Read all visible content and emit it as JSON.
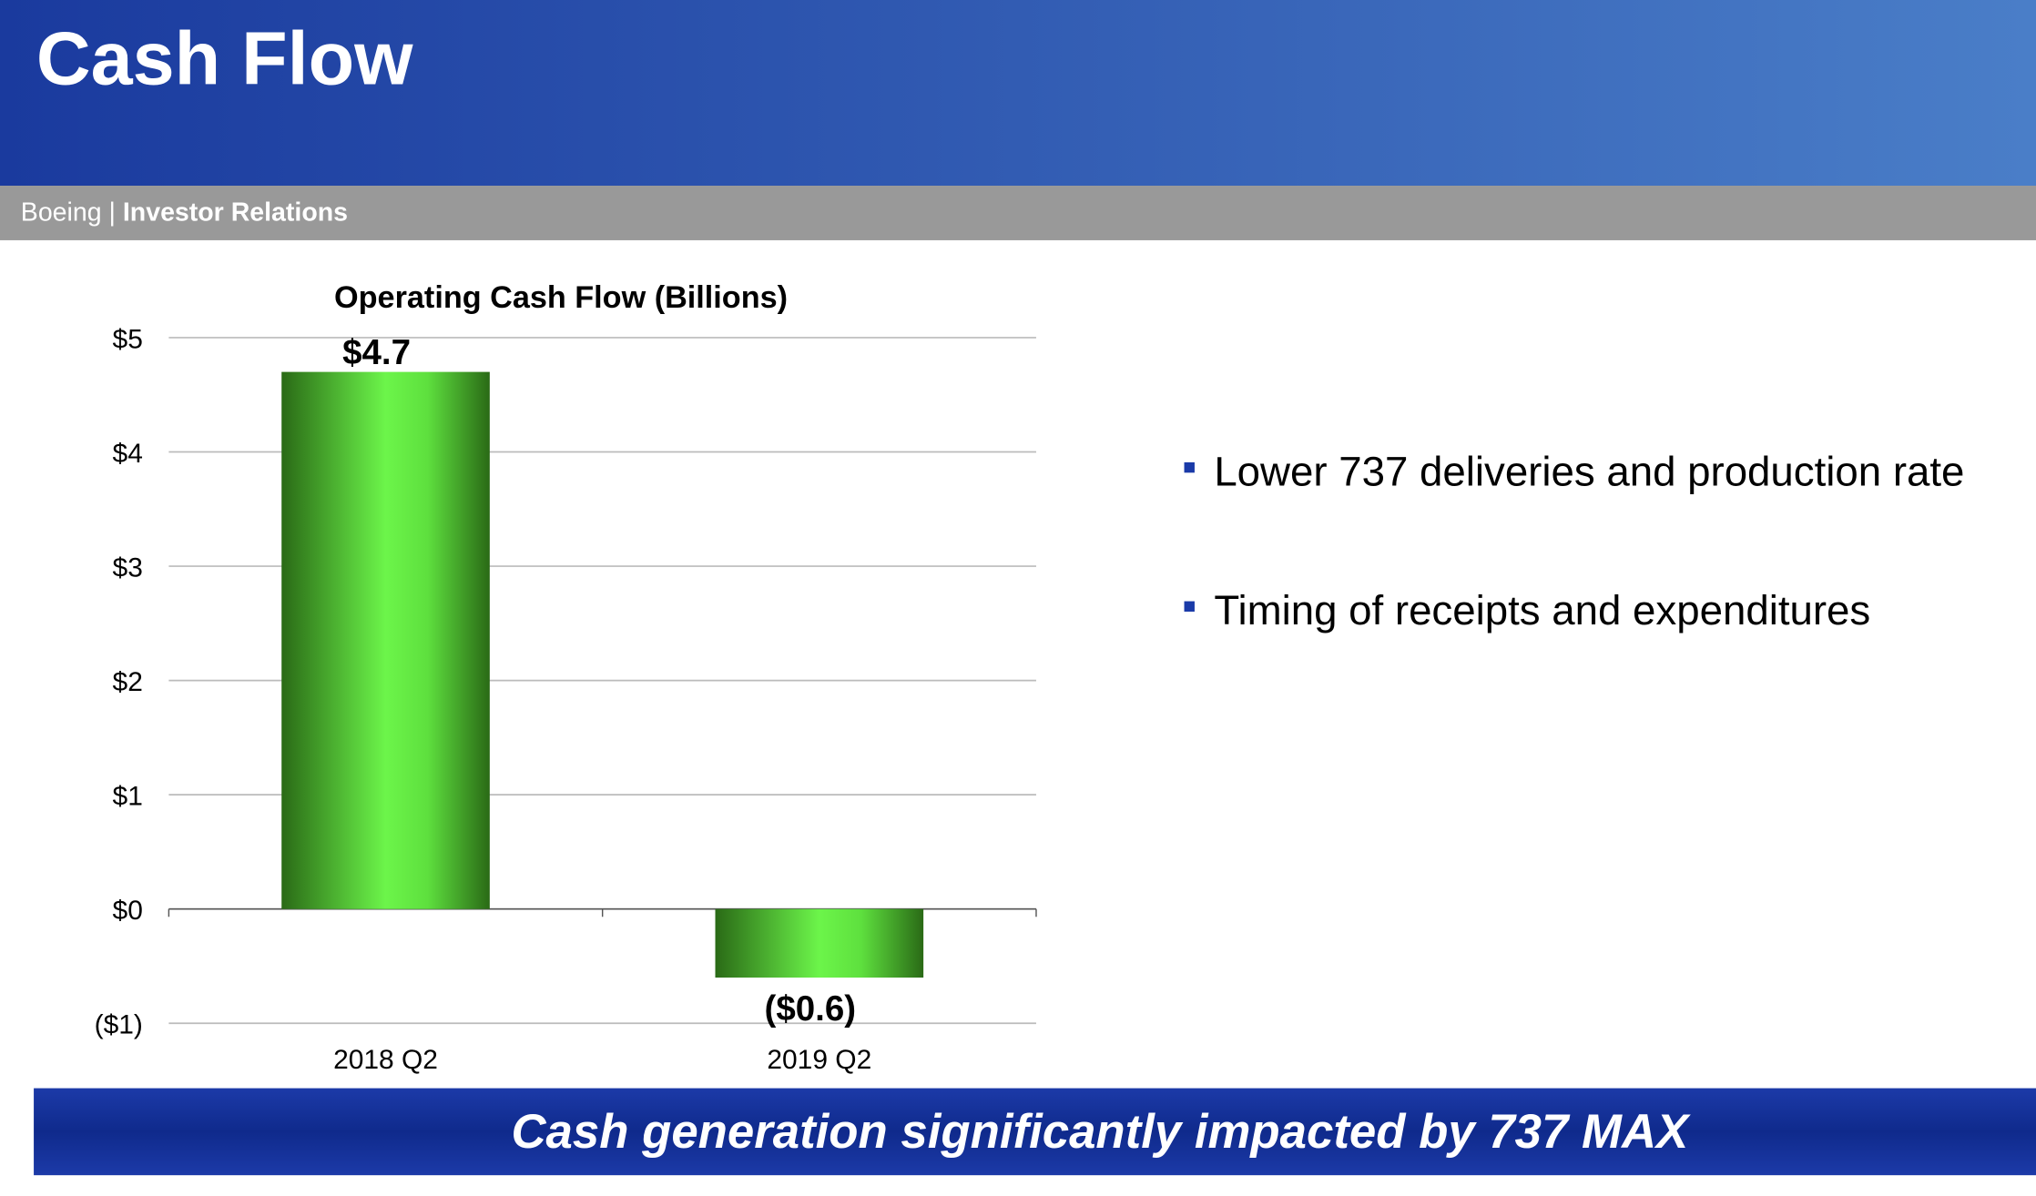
{
  "header": {
    "title": "Cash Flow",
    "org": "Boeing",
    "separator": "|",
    "section": "Investor Relations"
  },
  "chart_data": {
    "type": "bar",
    "title": "Operating Cash Flow (Billions)",
    "categories": [
      "2018 Q2",
      "2019 Q2"
    ],
    "values": [
      4.7,
      -0.6
    ],
    "value_labels": [
      "$4.7",
      "($0.6)"
    ],
    "color": "#6cf54a",
    "ylim": [
      -1,
      5
    ],
    "yticks": [
      {
        "value": -1,
        "label": "($1)"
      },
      {
        "value": 0,
        "label": "$0"
      },
      {
        "value": 1,
        "label": "$1"
      },
      {
        "value": 2,
        "label": "$2"
      },
      {
        "value": 3,
        "label": "$3"
      },
      {
        "value": 4,
        "label": "$4"
      },
      {
        "value": 5,
        "label": "$5"
      }
    ],
    "grid": true
  },
  "bullets": [
    "Lower 737 deliveries and production rate",
    "Timing of receipts and expenditures"
  ],
  "banner": "Cash generation significantly impacted by 737 MAX"
}
